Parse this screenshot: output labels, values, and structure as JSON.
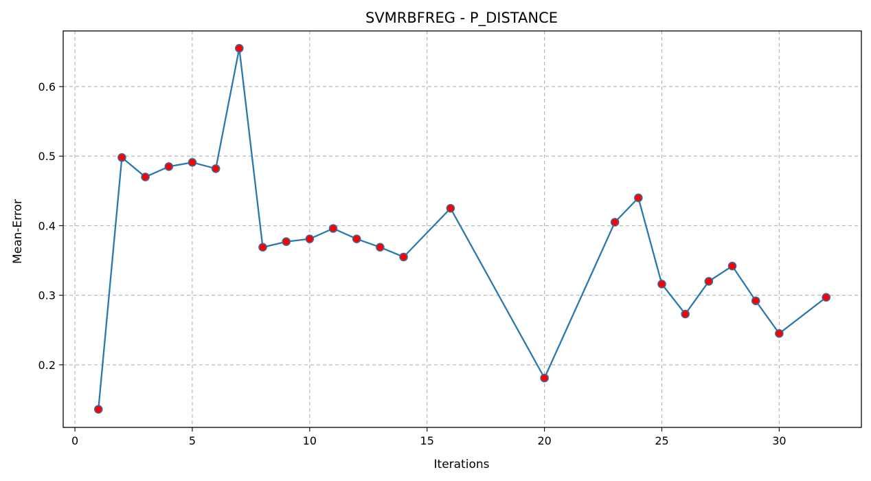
{
  "chart_data": {
    "type": "line",
    "title": "SVMRBFREG - P_DISTANCE",
    "xlabel": "Iterations",
    "ylabel": "Mean-Error",
    "xlim": [
      -0.5,
      33.5
    ],
    "ylim": [
      0.11,
      0.68
    ],
    "xticks": [
      0,
      5,
      10,
      15,
      20,
      25,
      30
    ],
    "yticks": [
      0.2,
      0.3,
      0.4,
      0.5,
      0.6
    ],
    "xtick_labels": [
      "0",
      "5",
      "10",
      "15",
      "20",
      "25",
      "30"
    ],
    "ytick_labels": [
      "0.2",
      "0.3",
      "0.4",
      "0.5",
      "0.6"
    ],
    "grid": true,
    "line_color": "#2878b0",
    "marker_color": "#ff0000",
    "marker_edge_color": "#3a6a9a",
    "series": [
      {
        "x": [
          1,
          2,
          3,
          4,
          5,
          6,
          7,
          8,
          9,
          10,
          11,
          12,
          13,
          14,
          16,
          20,
          23,
          24,
          25,
          26,
          27,
          28,
          29,
          30,
          32
        ],
        "y": [
          0.136,
          0.498,
          0.47,
          0.485,
          0.491,
          0.482,
          0.655,
          0.369,
          0.377,
          0.381,
          0.396,
          0.381,
          0.369,
          0.355,
          0.425,
          0.181,
          0.405,
          0.44,
          0.316,
          0.273,
          0.32,
          0.342,
          0.292,
          0.245,
          0.297
        ]
      }
    ]
  }
}
